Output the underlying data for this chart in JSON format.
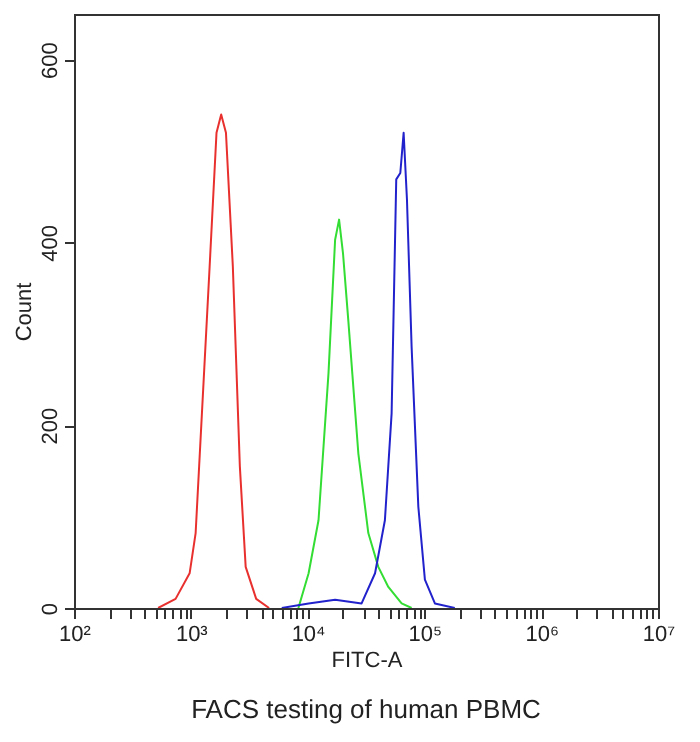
{
  "chart_data": {
    "type": "line",
    "title": "FACS testing of human PBMC",
    "xlabel": "FITC-A",
    "ylabel": "Count",
    "log": "x",
    "grid": false,
    "xlim": [
      100,
      10000000
    ],
    "ylim": [
      0,
      650
    ],
    "xticks": [
      {
        "value": 100,
        "label": "10²"
      },
      {
        "value": 200,
        "label": null
      },
      {
        "value": 300,
        "label": null
      },
      {
        "value": 400,
        "label": null
      },
      {
        "value": 500,
        "label": null
      },
      {
        "value": 600,
        "label": null
      },
      {
        "value": 700,
        "label": null
      },
      {
        "value": 800,
        "label": null
      },
      {
        "value": 900,
        "label": null
      },
      {
        "value": 1000,
        "label": "10³"
      },
      {
        "value": 2000,
        "label": null
      },
      {
        "value": 3000,
        "label": null
      },
      {
        "value": 4000,
        "label": null
      },
      {
        "value": 5000,
        "label": null
      },
      {
        "value": 6000,
        "label": null
      },
      {
        "value": 7000,
        "label": null
      },
      {
        "value": 8000,
        "label": null
      },
      {
        "value": 9000,
        "label": null
      },
      {
        "value": 10000,
        "label": "10⁴"
      },
      {
        "value": 20000,
        "label": null
      },
      {
        "value": 30000,
        "label": null
      },
      {
        "value": 40000,
        "label": null
      },
      {
        "value": 50000,
        "label": null
      },
      {
        "value": 60000,
        "label": null
      },
      {
        "value": 70000,
        "label": null
      },
      {
        "value": 80000,
        "label": null
      },
      {
        "value": 90000,
        "label": null
      },
      {
        "value": 100000,
        "label": "10⁵"
      },
      {
        "value": 200000,
        "label": null
      },
      {
        "value": 300000,
        "label": null
      },
      {
        "value": 400000,
        "label": null
      },
      {
        "value": 500000,
        "label": null
      },
      {
        "value": 600000,
        "label": null
      },
      {
        "value": 700000,
        "label": null
      },
      {
        "value": 800000,
        "label": null
      },
      {
        "value": 900000,
        "label": null
      },
      {
        "value": 1000000,
        "label": "10⁶"
      },
      {
        "value": 2000000,
        "label": null
      },
      {
        "value": 3000000,
        "label": null
      },
      {
        "value": 4000000,
        "label": null
      },
      {
        "value": 5000000,
        "label": null
      },
      {
        "value": 6000000,
        "label": null
      },
      {
        "value": 7000000,
        "label": null
      },
      {
        "value": 8000000,
        "label": null
      },
      {
        "value": 9000000,
        "label": null
      },
      {
        "value": 10000000,
        "label": "10⁷"
      }
    ],
    "yticks": [
      0,
      200,
      400,
      600
    ],
    "series": [
      {
        "color": "#e8312f",
        "x": [
          525,
          741,
          977,
          1100,
          1450,
          1660,
          1820,
          2000,
          2290,
          2630,
          2950,
          3630,
          4680
        ],
        "values": [
          0,
          10,
          38,
          82,
          374,
          520,
          540,
          520,
          374,
          155,
          45,
          10,
          0
        ]
      },
      {
        "color": "#33dd33",
        "x": [
          8340,
          10200,
          12400,
          15100,
          17200,
          18600,
          20100,
          22300,
          27200,
          33100,
          40300,
          49100,
          63800,
          77700
        ],
        "values": [
          0,
          38,
          96,
          257,
          403,
          425,
          388,
          315,
          169,
          82,
          45,
          23,
          5,
          0
        ]
      },
      {
        "color": "#2222cc",
        "x": [
          6010,
          10200,
          17200,
          29000,
          37800,
          45900,
          52400,
          57400,
          62200,
          66400,
          70900,
          77700,
          88700,
          101000,
          123000,
          182000
        ],
        "values": [
          0,
          5,
          9,
          5,
          38,
          96,
          213,
          469,
          476,
          520,
          447,
          286,
          111,
          31,
          5,
          0
        ]
      }
    ]
  }
}
